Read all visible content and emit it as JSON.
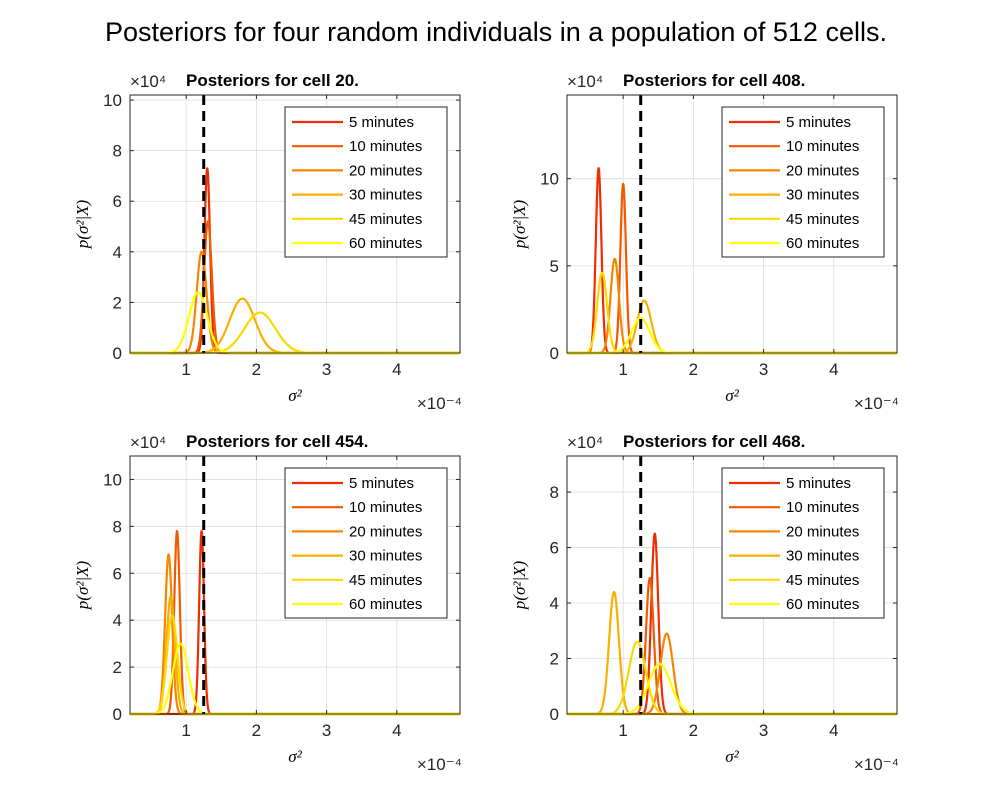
{
  "suptitle": "Posteriors for four random individuals in a population of 512 cells.",
  "colors": {
    "5 minutes": "#ee2d00",
    "10 minutes": "#f25a00",
    "20 minutes": "#f58700",
    "30 minutes": "#f9b000",
    "45 minutes": "#fcd800",
    "60 minutes": "#ffff00"
  },
  "chart_data": [
    {
      "type": "line",
      "title": "Posteriors for cell 20.",
      "xlabel": "σ²",
      "ylabel": "p(σ²|X)",
      "x_exponent": "×10⁻⁴",
      "y_exponent": "×10⁴",
      "xlim": [
        0.2,
        4.9
      ],
      "ylim": [
        0,
        10.2
      ],
      "xticks": [
        1,
        2,
        3,
        4
      ],
      "yticks": [
        0,
        2,
        4,
        6,
        8,
        10
      ],
      "true_value": 1.25,
      "legend_position": "top-right",
      "grid": true,
      "series": [
        {
          "name": "5 minutes",
          "peak_x": 1.3,
          "peak_y": 7.3,
          "sd": 0.04
        },
        {
          "name": "10 minutes",
          "peak_x": 1.31,
          "peak_y": 5.2,
          "sd": 0.055
        },
        {
          "name": "20 minutes",
          "peak_x": 1.22,
          "peak_y": 4.0,
          "sd": 0.07
        },
        {
          "name": "30 minutes",
          "peak_x": 1.8,
          "peak_y": 2.15,
          "sd": 0.18
        },
        {
          "name": "45 minutes",
          "peak_x": 2.05,
          "peak_y": 1.6,
          "sd": 0.22
        },
        {
          "name": "60 minutes",
          "peak_x": 1.17,
          "peak_y": 2.4,
          "sd": 0.13
        }
      ]
    },
    {
      "type": "line",
      "title": "Posteriors for cell 408.",
      "xlabel": "σ²",
      "ylabel": "p(σ²|X)",
      "x_exponent": "×10⁻⁴",
      "y_exponent": "×10⁴",
      "xlim": [
        0.2,
        4.9
      ],
      "ylim": [
        0,
        14.8
      ],
      "xticks": [
        1,
        2,
        3,
        4
      ],
      "yticks": [
        0,
        5,
        10
      ],
      "true_value": 1.25,
      "legend_position": "top-right",
      "grid": true,
      "series": [
        {
          "name": "5 minutes",
          "peak_x": 0.65,
          "peak_y": 10.6,
          "sd": 0.04
        },
        {
          "name": "10 minutes",
          "peak_x": 1.0,
          "peak_y": 9.7,
          "sd": 0.04
        },
        {
          "name": "20 minutes",
          "peak_x": 0.88,
          "peak_y": 5.4,
          "sd": 0.06
        },
        {
          "name": "30 minutes",
          "peak_x": 1.3,
          "peak_y": 3.0,
          "sd": 0.1
        },
        {
          "name": "45 minutes",
          "peak_x": 0.7,
          "peak_y": 4.6,
          "sd": 0.07
        },
        {
          "name": "60 minutes",
          "peak_x": 1.25,
          "peak_y": 2.0,
          "sd": 0.13
        }
      ]
    },
    {
      "type": "line",
      "title": "Posteriors for cell 454.",
      "xlabel": "σ²",
      "ylabel": "p(σ²|X)",
      "x_exponent": "×10⁻⁴",
      "y_exponent": "×10⁴",
      "xlim": [
        0.2,
        4.9
      ],
      "ylim": [
        0,
        11
      ],
      "xticks": [
        1,
        2,
        3,
        4
      ],
      "yticks": [
        0,
        2,
        4,
        6,
        8,
        10
      ],
      "true_value": 1.25,
      "legend_position": "top-right",
      "grid": true,
      "series": [
        {
          "name": "5 minutes",
          "peak_x": 1.22,
          "peak_y": 7.8,
          "sd": 0.035
        },
        {
          "name": "10 minutes",
          "peak_x": 0.87,
          "peak_y": 7.8,
          "sd": 0.04
        },
        {
          "name": "20 minutes",
          "peak_x": 0.75,
          "peak_y": 6.8,
          "sd": 0.05
        },
        {
          "name": "30 minutes",
          "peak_x": 0.78,
          "peak_y": 5.0,
          "sd": 0.06
        },
        {
          "name": "45 minutes",
          "peak_x": 0.8,
          "peak_y": 4.2,
          "sd": 0.075
        },
        {
          "name": "60 minutes",
          "peak_x": 0.92,
          "peak_y": 3.0,
          "sd": 0.11
        }
      ]
    },
    {
      "type": "line",
      "title": "Posteriors for cell 468.",
      "xlabel": "σ²",
      "ylabel": "p(σ²|X)",
      "x_exponent": "×10⁻⁴",
      "y_exponent": "×10⁴",
      "xlim": [
        0.2,
        4.9
      ],
      "ylim": [
        0,
        9.3
      ],
      "xticks": [
        1,
        2,
        3,
        4
      ],
      "yticks": [
        0,
        2,
        4,
        6,
        8
      ],
      "true_value": 1.25,
      "legend_position": "top-right",
      "grid": true,
      "series": [
        {
          "name": "5 minutes",
          "peak_x": 1.45,
          "peak_y": 6.5,
          "sd": 0.05
        },
        {
          "name": "10 minutes",
          "peak_x": 1.38,
          "peak_y": 4.9,
          "sd": 0.055
        },
        {
          "name": "20 minutes",
          "peak_x": 1.62,
          "peak_y": 2.9,
          "sd": 0.09
        },
        {
          "name": "30 minutes",
          "peak_x": 0.87,
          "peak_y": 4.4,
          "sd": 0.07
        },
        {
          "name": "45 minutes",
          "peak_x": 1.2,
          "peak_y": 2.6,
          "sd": 0.12
        },
        {
          "name": "60 minutes",
          "peak_x": 1.52,
          "peak_y": 1.8,
          "sd": 0.16
        }
      ]
    }
  ]
}
